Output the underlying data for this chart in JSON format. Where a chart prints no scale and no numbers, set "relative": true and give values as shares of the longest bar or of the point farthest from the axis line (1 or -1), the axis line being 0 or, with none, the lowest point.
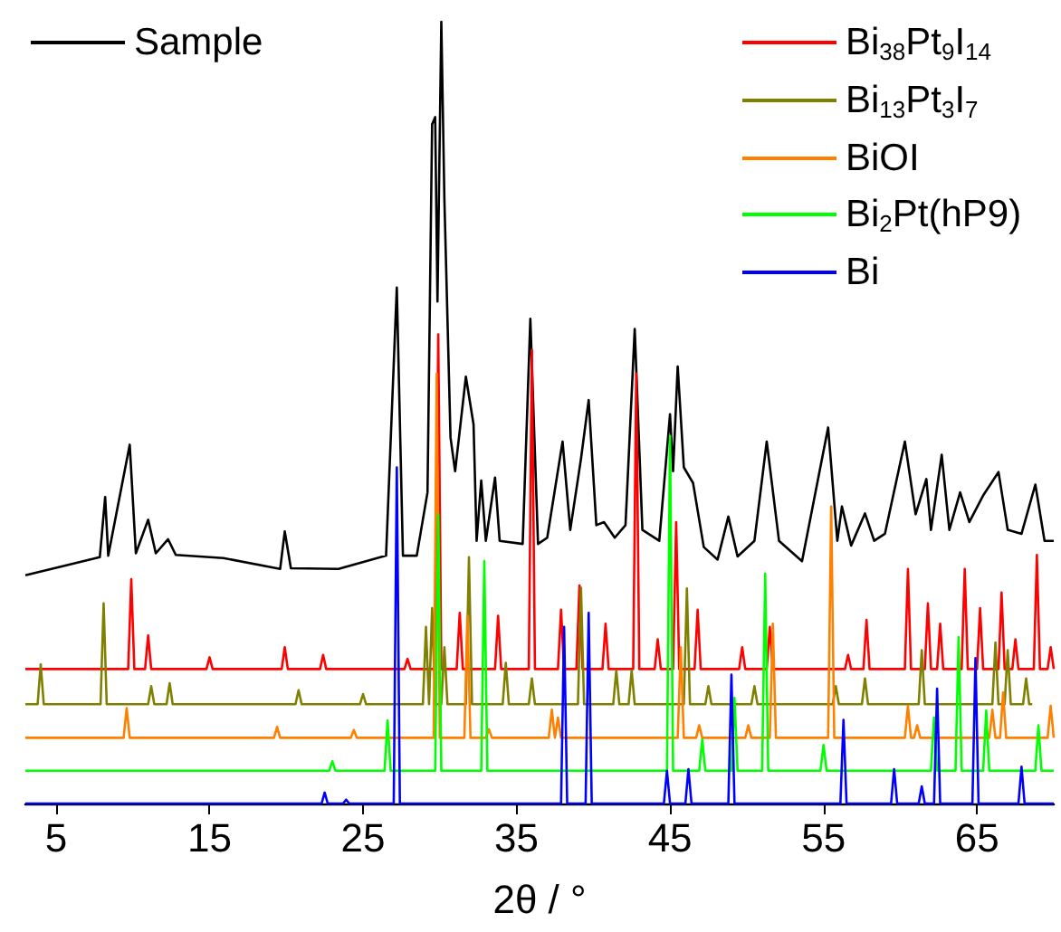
{
  "chart_data": {
    "type": "line",
    "relative": true,
    "xlabel": "2θ / °",
    "xlim": [
      3,
      70
    ],
    "xticks": [
      5,
      15,
      25,
      35,
      45,
      55,
      65
    ],
    "legend": "top",
    "grid": false,
    "series": [
      {
        "name": "Sample",
        "color": "#000000",
        "x": [
          3.0,
          7.85,
          8.2,
          8.4,
          9.8,
          10.2,
          11.0,
          11.5,
          12.3,
          12.8,
          15.9,
          19.6,
          19.9,
          20.3,
          23.4,
          26.5,
          27.2,
          27.6,
          28.5,
          29.2,
          29.5,
          29.7,
          29.85,
          30.1,
          30.3,
          30.7,
          31.0,
          31.7,
          32.2,
          32.4,
          32.7,
          33.0,
          33.6,
          33.9,
          35.4,
          35.9,
          36.4,
          37.0,
          38.0,
          38.5,
          39.2,
          39.7,
          40.2,
          40.7,
          41.4,
          42.1,
          42.7,
          43.2,
          44.3,
          45.0,
          45.2,
          45.5,
          45.9,
          46.5,
          47.2,
          48.1,
          48.8,
          49.4,
          50.5,
          51.3,
          52.1,
          53.6,
          55.3,
          55.9,
          56.2,
          56.8,
          57.7,
          58.3,
          59.0,
          60.3,
          61.0,
          61.7,
          62.0,
          62.7,
          63.2,
          63.9,
          64.5,
          65.4,
          66.4,
          67.0,
          67.9,
          68.8,
          69.4,
          70.0
        ],
        "values": [
          0.292,
          0.315,
          0.392,
          0.317,
          0.459,
          0.32,
          0.363,
          0.32,
          0.338,
          0.318,
          0.314,
          0.3,
          0.348,
          0.301,
          0.3,
          0.317,
          0.66,
          0.317,
          0.317,
          0.398,
          0.869,
          0.878,
          0.642,
          1,
          0.773,
          0.468,
          0.425,
          0.546,
          0.485,
          0.336,
          0.413,
          0.336,
          0.417,
          0.336,
          0.332,
          0.62,
          0.332,
          0.34,
          0.463,
          0.35,
          0.441,
          0.516,
          0.356,
          0.36,
          0.34,
          0.356,
          0.607,
          0.35,
          0.336,
          0.498,
          0.425,
          0.559,
          0.43,
          0.41,
          0.328,
          0.312,
          0.367,
          0.316,
          0.336,
          0.463,
          0.336,
          0.31,
          0.481,
          0.336,
          0.38,
          0.33,
          0.371,
          0.336,
          0.345,
          0.463,
          0.37,
          0.415,
          0.35,
          0.446,
          0.35,
          0.398,
          0.36,
          0.394,
          0.424,
          0.35,
          0.345,
          0.408,
          0.336,
          0.336
        ]
      },
      {
        "name": "Bi$_{38}$Pt$_{9}$I$_{14}$",
        "color": "#ff0000",
        "x": [
          3,
          9.7,
          9.9,
          10.1,
          10.8,
          11.0,
          11.2,
          14.8,
          15.0,
          15.2,
          19.7,
          19.9,
          20.1,
          22.2,
          22.4,
          22.6,
          27.7,
          27.9,
          28.1,
          29.7,
          29.9,
          30.1,
          31.1,
          31.3,
          31.5,
          33.6,
          33.8,
          34.0,
          35.8,
          36.0,
          36.2,
          37.7,
          37.9,
          38.1,
          38.9,
          39.1,
          39.3,
          40.6,
          40.8,
          41.0,
          42.6,
          42.8,
          43.0,
          44.0,
          44.2,
          44.4,
          45.2,
          45.4,
          45.6,
          46.6,
          46.8,
          47.0,
          49.5,
          49.7,
          49.9,
          51.3,
          51.5,
          51.7,
          56.4,
          56.6,
          56.8,
          57.6,
          57.8,
          58.0,
          60.3,
          60.5,
          60.7,
          61.6,
          61.8,
          62.0,
          62.4,
          62.6,
          62.8,
          64.0,
          64.2,
          64.4,
          65.0,
          65.2,
          65.4,
          66.4,
          66.6,
          66.8,
          67.3,
          67.5,
          67.7,
          68.7,
          68.9,
          69.1,
          69.6,
          69.8,
          70.0
        ],
        "values": [
          0.172,
          0.172,
          0.287,
          0.172,
          0.172,
          0.215,
          0.172,
          0.172,
          0.187,
          0.172,
          0.172,
          0.2,
          0.172,
          0.172,
          0.19,
          0.172,
          0.172,
          0.185,
          0.172,
          0.172,
          0.6,
          0.172,
          0.172,
          0.244,
          0.172,
          0.172,
          0.24,
          0.172,
          0.172,
          0.58,
          0.172,
          0.172,
          0.248,
          0.172,
          0.172,
          0.279,
          0.172,
          0.172,
          0.23,
          0.172,
          0.172,
          0.55,
          0.172,
          0.172,
          0.21,
          0.172,
          0.172,
          0.36,
          0.172,
          0.172,
          0.248,
          0.172,
          0.172,
          0.2,
          0.172,
          0.172,
          0.226,
          0.172,
          0.172,
          0.19,
          0.172,
          0.172,
          0.235,
          0.172,
          0.172,
          0.3,
          0.172,
          0.172,
          0.256,
          0.172,
          0.172,
          0.23,
          0.172,
          0.172,
          0.3,
          0.172,
          0.172,
          0.25,
          0.172,
          0.172,
          0.27,
          0.172,
          0.172,
          0.21,
          0.172,
          0.172,
          0.318,
          0.172,
          0.172,
          0.2,
          0.172
        ]
      },
      {
        "name": "Bi$_{13}$Pt$_{3}$I$_{7}$",
        "color": "#808000",
        "x": [
          3,
          3.8,
          4.0,
          4.2,
          7.9,
          8.1,
          8.3,
          11.0,
          11.2,
          11.4,
          12.2,
          12.4,
          12.6,
          20.6,
          20.8,
          21.0,
          24.8,
          25.0,
          25.2,
          28.9,
          29.1,
          29.3,
          29.5,
          29.7,
          30.1,
          30.3,
          30.5,
          31.7,
          31.9,
          32.1,
          34.1,
          34.3,
          34.5,
          35.8,
          36.0,
          36.2,
          39.0,
          39.2,
          39.4,
          41.3,
          41.5,
          41.7,
          42.3,
          42.5,
          42.7,
          45.9,
          46.1,
          46.3,
          47.3,
          47.5,
          47.7,
          50.3,
          50.5,
          50.7,
          55.6,
          55.8,
          56.0,
          57.5,
          57.7,
          57.9,
          61.2,
          61.4,
          61.6,
          66.0,
          66.2,
          66.4,
          66.8,
          67.0,
          67.2,
          68.0,
          68.2,
          68.4,
          68.6
        ],
        "values": [
          0.127,
          0.127,
          0.178,
          0.127,
          0.127,
          0.256,
          0.127,
          0.127,
          0.15,
          0.127,
          0.127,
          0.154,
          0.127,
          0.127,
          0.145,
          0.127,
          0.127,
          0.14,
          0.127,
          0.127,
          0.226,
          0.127,
          0.25,
          0.127,
          0.127,
          0.2,
          0.127,
          0.127,
          0.315,
          0.127,
          0.127,
          0.18,
          0.127,
          0.127,
          0.16,
          0.127,
          0.127,
          0.276,
          0.127,
          0.127,
          0.17,
          0.127,
          0.127,
          0.17,
          0.127,
          0.127,
          0.275,
          0.127,
          0.127,
          0.15,
          0.127,
          0.127,
          0.15,
          0.127,
          0.127,
          0.15,
          0.127,
          0.127,
          0.16,
          0.127,
          0.127,
          0.196,
          0.127,
          0.127,
          0.206,
          0.127,
          0.127,
          0.196,
          0.127,
          0.127,
          0.16,
          0.127,
          0.127
        ]
      },
      {
        "name": "BiOI",
        "color": "#ff8000",
        "x": [
          3,
          9.4,
          9.6,
          9.8,
          19.2,
          19.4,
          19.6,
          24.2,
          24.4,
          24.6,
          29.6,
          29.8,
          30.0,
          31.6,
          31.8,
          32.0,
          33.0,
          33.2,
          33.4,
          37.1,
          37.3,
          37.5,
          37.7,
          37.9,
          45.5,
          45.7,
          45.9,
          46.7,
          46.9,
          47.1,
          49.9,
          50.1,
          50.3,
          51.5,
          51.7,
          51.9,
          55.3,
          55.5,
          55.7,
          60.3,
          60.5,
          60.7,
          60.9,
          61.1,
          61.3,
          65.8,
          66.0,
          66.2,
          66.5,
          66.7,
          66.9,
          69.6,
          69.8,
          70
        ],
        "values": [
          0.084,
          0.084,
          0.122,
          0.084,
          0.084,
          0.098,
          0.084,
          0.084,
          0.094,
          0.084,
          0.084,
          0.55,
          0.084,
          0.084,
          0.24,
          0.084,
          0.084,
          0.095,
          0.084,
          0.084,
          0.12,
          0.084,
          0.11,
          0.084,
          0.084,
          0.2,
          0.084,
          0.084,
          0.1,
          0.084,
          0.084,
          0.1,
          0.084,
          0.084,
          0.23,
          0.084,
          0.084,
          0.38,
          0.084,
          0.084,
          0.125,
          0.084,
          0.084,
          0.1,
          0.084,
          0.084,
          0.12,
          0.084,
          0.084,
          0.142,
          0.084,
          0.084,
          0.125,
          0.084
        ]
      },
      {
        "name": "Bi$_{2}$Pt(hP9)",
        "color": "#00ff00",
        "x": [
          3,
          22.8,
          23.0,
          23.2,
          26.4,
          26.6,
          26.8,
          29.7,
          29.9,
          30.1,
          32.7,
          32.9,
          33.1,
          44.8,
          45.0,
          45.2,
          46.9,
          47.1,
          47.3,
          49.0,
          49.2,
          49.4,
          51.0,
          51.2,
          51.4,
          54.8,
          55.0,
          55.2,
          62.0,
          62.2,
          62.4,
          63.6,
          63.8,
          64.0,
          65.4,
          65.6,
          65.8,
          68.8,
          69.0,
          69.2,
          70
        ],
        "values": [
          0.042,
          0.042,
          0.054,
          0.042,
          0.042,
          0.106,
          0.042,
          0.042,
          0.37,
          0.042,
          0.042,
          0.31,
          0.042,
          0.042,
          0.47,
          0.042,
          0.042,
          0.082,
          0.042,
          0.042,
          0.135,
          0.042,
          0.042,
          0.294,
          0.042,
          0.042,
          0.075,
          0.042,
          0.042,
          0.11,
          0.042,
          0.042,
          0.213,
          0.042,
          0.042,
          0.119,
          0.042,
          0.042,
          0.1,
          0.042,
          0.042
        ]
      },
      {
        "name": "Bi",
        "color": "#0000ff",
        "x": [
          3,
          22.3,
          22.5,
          22.7,
          23.7,
          23.9,
          24.1,
          27.0,
          27.2,
          27.4,
          37.9,
          38.1,
          38.3,
          39.5,
          39.7,
          39.9,
          44.6,
          44.8,
          45.0,
          46.0,
          46.2,
          46.4,
          48.8,
          49.0,
          49.2,
          56.1,
          56.3,
          56.5,
          59.4,
          59.6,
          59.8,
          61.2,
          61.4,
          61.6,
          62.2,
          62.4,
          62.6,
          64.7,
          64.9,
          65.1,
          67.7,
          67.9,
          68.1,
          70
        ],
        "values": [
          0,
          0,
          0.014,
          0,
          0,
          0.005,
          0,
          0,
          0.43,
          0,
          0,
          0.226,
          0,
          0,
          0.244,
          0,
          0,
          0.042,
          0,
          0,
          0.044,
          0,
          0,
          0.165,
          0,
          0,
          0.107,
          0,
          0,
          0.044,
          0,
          0,
          0.022,
          0,
          0,
          0.147,
          0,
          0,
          0.186,
          0,
          0,
          0.047,
          0,
          0
        ]
      }
    ]
  }
}
